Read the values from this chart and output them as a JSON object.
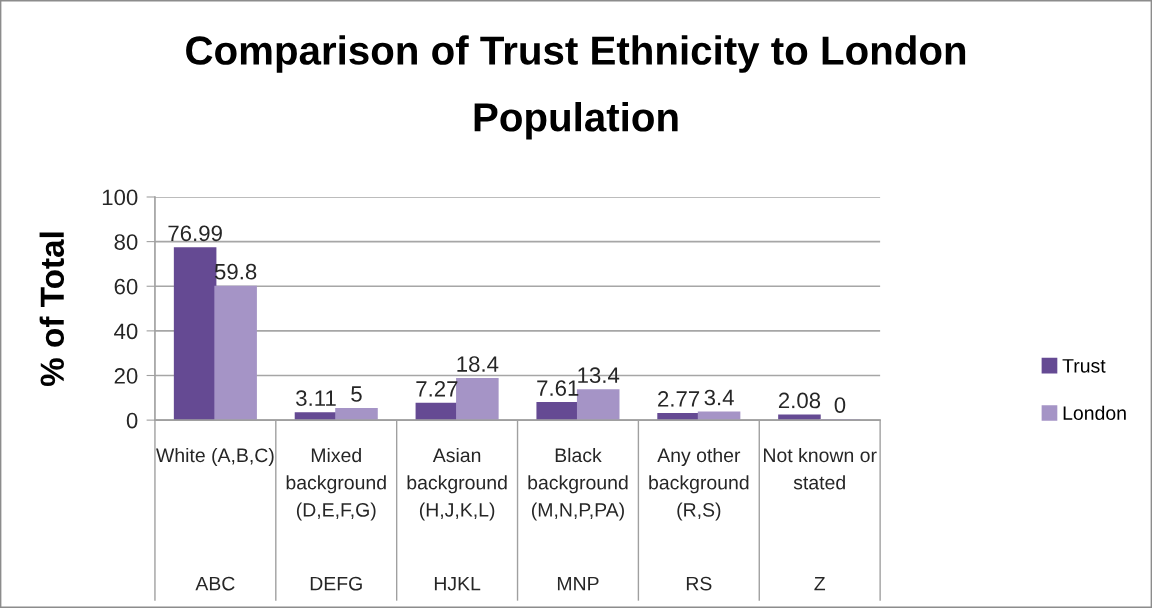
{
  "chart_data": {
    "type": "bar",
    "title": "Comparison of Trust Ethnicity to London\nPopulation",
    "ylabel": "% of Total",
    "categories": [
      "White (A,B,C)\nABC",
      "Mixed\nbackground\n(D,E,F,G)\nDEFG",
      "Asian\nbackground\n(H,J,K,L)\nHJKL",
      "Black\nbackground\n(M,N,P,PA)\nMNP",
      "Any other\nbackground\n(R,S)\nRS",
      "Not known or\nstated\nZ"
    ],
    "series": [
      {
        "name": "Trust",
        "color": "#654a93",
        "values": [
          76.99,
          3.11,
          7.27,
          7.61,
          2.77,
          2.08
        ]
      },
      {
        "name": "London",
        "color": "#a594c6",
        "values": [
          59.8,
          5,
          18.4,
          13.4,
          3.4,
          0
        ]
      }
    ],
    "ylim": [
      0,
      100
    ],
    "yticks": [
      0,
      20,
      40,
      60,
      80,
      100
    ],
    "grid": "y",
    "legend": "right",
    "data_labels": true
  }
}
